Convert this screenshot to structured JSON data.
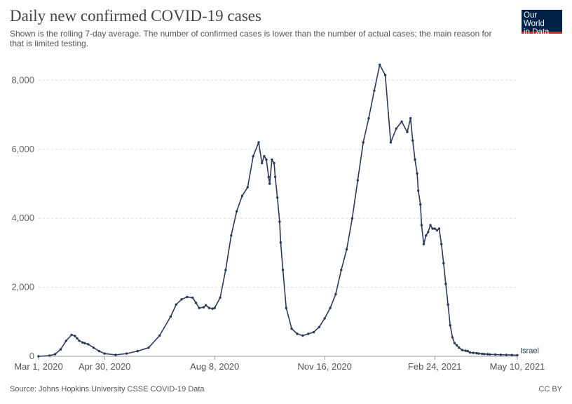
{
  "header": {
    "title": "Daily new confirmed COVID-19 cases",
    "subtitle": "Shown is the rolling 7-day average. The number of confirmed cases is lower than the number of actual cases; the main reason for that is limited testing.",
    "logo_line1": "Our World",
    "logo_line2": "in Data"
  },
  "footer": {
    "source": "Source: Johns Hopkins University CSSE COVID-19 Data",
    "license": "CC BY"
  },
  "colors": {
    "series": "#2b3a57",
    "grid": "#dddddd",
    "logo_bg": "#002147",
    "logo_accent": "#ce261e"
  },
  "chart_data": {
    "type": "line",
    "title": "Daily new confirmed COVID-19 cases",
    "x_unit": "days since Mar 1, 2020",
    "xlim": [
      0,
      435
    ],
    "ylim": [
      0,
      8700
    ],
    "y_ticks": [
      0,
      2000,
      4000,
      6000,
      8000
    ],
    "y_tick_labels": [
      "0",
      "2,000",
      "4,000",
      "6,000",
      "8,000"
    ],
    "x_ticks": [
      0,
      60,
      160,
      260,
      360,
      435
    ],
    "x_tick_labels": [
      "Mar 1, 2020",
      "Apr 30, 2020",
      "Aug 8, 2020",
      "Nov 16, 2020",
      "Feb 24, 2021",
      "May 10, 2021"
    ],
    "grid": true,
    "legend": "none",
    "series": [
      {
        "name": "Israel",
        "x": [
          0,
          10,
          15,
          20,
          25,
          30,
          33,
          35,
          37,
          40,
          42,
          45,
          50,
          55,
          60,
          70,
          80,
          90,
          100,
          110,
          120,
          125,
          130,
          135,
          140,
          143,
          146,
          150,
          152,
          155,
          158,
          160,
          165,
          170,
          175,
          180,
          185,
          190,
          195,
          200,
          203,
          205,
          207,
          209,
          210,
          212,
          214,
          215,
          217,
          219,
          220,
          222,
          225,
          230,
          235,
          240,
          245,
          250,
          255,
          260,
          265,
          270,
          275,
          280,
          285,
          290,
          295,
          300,
          305,
          310,
          315,
          320,
          325,
          330,
          335,
          338,
          340,
          342,
          344,
          345,
          347,
          348,
          350,
          352,
          354,
          356,
          358,
          360,
          362,
          364,
          366,
          368,
          370,
          372,
          374,
          376,
          378,
          380,
          382,
          385,
          388,
          390,
          392,
          395,
          398,
          400,
          403,
          405,
          408,
          410,
          415,
          420,
          425,
          430,
          435
        ],
        "y": [
          0,
          20,
          60,
          200,
          450,
          620,
          590,
          520,
          450,
          400,
          380,
          350,
          250,
          150,
          80,
          40,
          80,
          150,
          250,
          600,
          1150,
          1500,
          1650,
          1720,
          1700,
          1550,
          1400,
          1420,
          1480,
          1400,
          1380,
          1400,
          1700,
          2500,
          3500,
          4200,
          4650,
          4900,
          5800,
          6200,
          5600,
          5800,
          5700,
          5200,
          5000,
          5700,
          5600,
          5200,
          4600,
          3900,
          3300,
          2500,
          1400,
          800,
          650,
          600,
          650,
          700,
          850,
          1100,
          1400,
          1800,
          2500,
          3100,
          4000,
          5100,
          6200,
          6900,
          7700,
          8450,
          8150,
          6200,
          6600,
          6800,
          6500,
          6900,
          6250,
          5700,
          5300,
          4800,
          4400,
          3800,
          3250,
          3500,
          3600,
          3800,
          3700,
          3700,
          3650,
          3700,
          3250,
          2700,
          2100,
          1500,
          900,
          550,
          380,
          320,
          250,
          180,
          160,
          150,
          110,
          100,
          90,
          80,
          70,
          65,
          60,
          55,
          50,
          45,
          40,
          36,
          32
        ]
      }
    ]
  }
}
